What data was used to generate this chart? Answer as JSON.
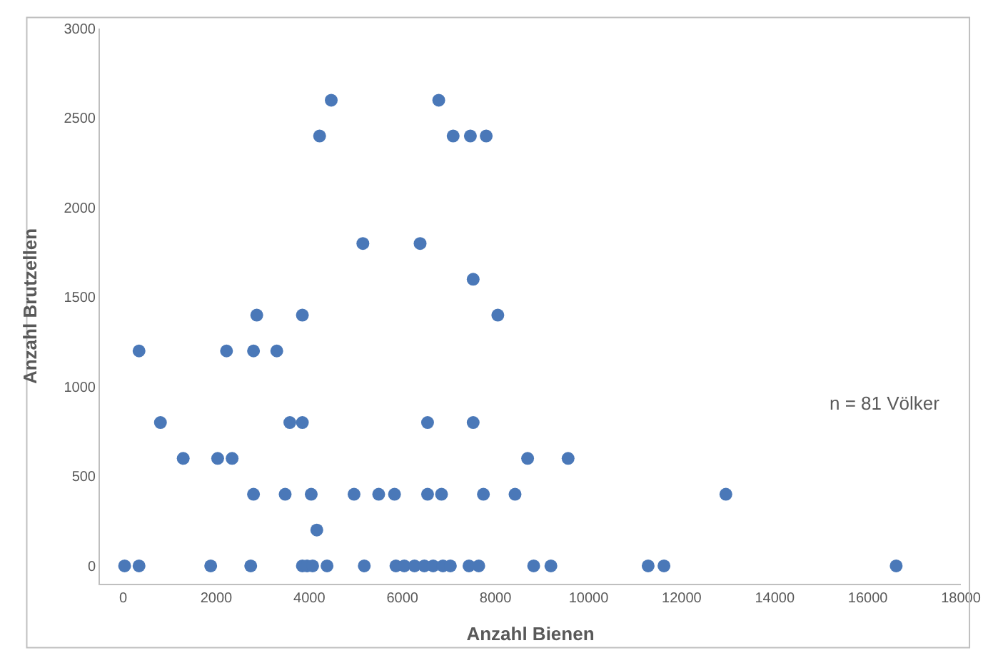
{
  "chart_data": {
    "type": "scatter",
    "xlabel": "Anzahl Bienen",
    "ylabel": "Anzahl Brutzellen",
    "annotations": [
      "n = 81 Völker"
    ],
    "x": [
      4470,
      6780,
      4220,
      7090,
      7460,
      7800,
      5150,
      6380,
      7520,
      2870,
      3850,
      8050,
      340,
      2220,
      2800,
      3300,
      800,
      3580,
      3850,
      6540,
      7520,
      1290,
      2030,
      2340,
      8690,
      9560,
      2800,
      3480,
      4040,
      4960,
      5490,
      5830,
      6540,
      6840,
      7740,
      8420,
      12950,
      4160,
      30,
      340,
      1880,
      2740,
      3850,
      3950,
      4070,
      4380,
      5180,
      5860,
      6040,
      6260,
      6470,
      6660,
      6870,
      7030,
      7430,
      7640,
      8820,
      9190,
      11280,
      11620,
      16610
    ],
    "values": [
      2600,
      2600,
      2400,
      2400,
      2400,
      2400,
      1800,
      1800,
      1600,
      1400,
      1400,
      1400,
      1200,
      1200,
      1200,
      1200,
      800,
      800,
      800,
      800,
      800,
      600,
      600,
      600,
      600,
      600,
      400,
      400,
      400,
      400,
      400,
      400,
      400,
      400,
      400,
      400,
      400,
      200,
      0,
      0,
      0,
      0,
      0,
      0,
      0,
      0,
      0,
      0,
      0,
      0,
      0,
      0,
      0,
      0,
      0,
      0,
      0,
      0,
      0,
      0,
      0
    ],
    "color": "#4a78b8",
    "marker": "circle",
    "xlim": [
      -500,
      18000
    ],
    "xticks": [
      0,
      2000,
      4000,
      6000,
      8000,
      10000,
      12000,
      14000,
      16000,
      18000
    ],
    "ylim": [
      -100,
      3000
    ],
    "yticks": [
      0,
      500,
      1000,
      1500,
      2000,
      2500,
      3000
    ],
    "legend": false
  }
}
